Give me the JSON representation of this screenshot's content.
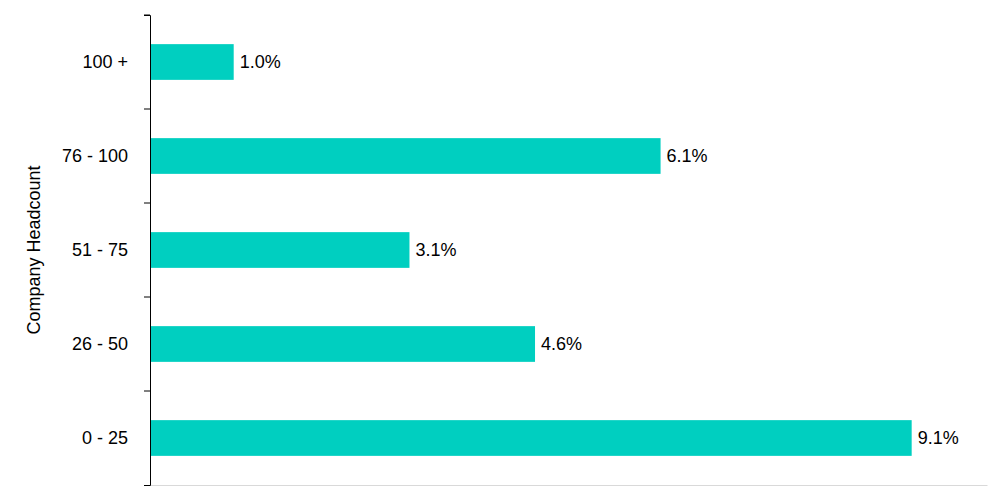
{
  "chart_data": {
    "type": "bar",
    "orientation": "horizontal",
    "y_label": "Company Headcount",
    "categories": [
      "0 - 25",
      "26 - 50",
      "51 - 75",
      "76 - 100",
      "100 +"
    ],
    "values": [
      9.1,
      4.6,
      3.1,
      6.1,
      1.0
    ],
    "value_labels": [
      "9.1%",
      "4.6%",
      "3.1%",
      "6.1%",
      "1.0%"
    ],
    "color": "#00cfc0",
    "xlim": [
      0,
      10
    ],
    "data_labels": true,
    "tick_labels": "y"
  }
}
